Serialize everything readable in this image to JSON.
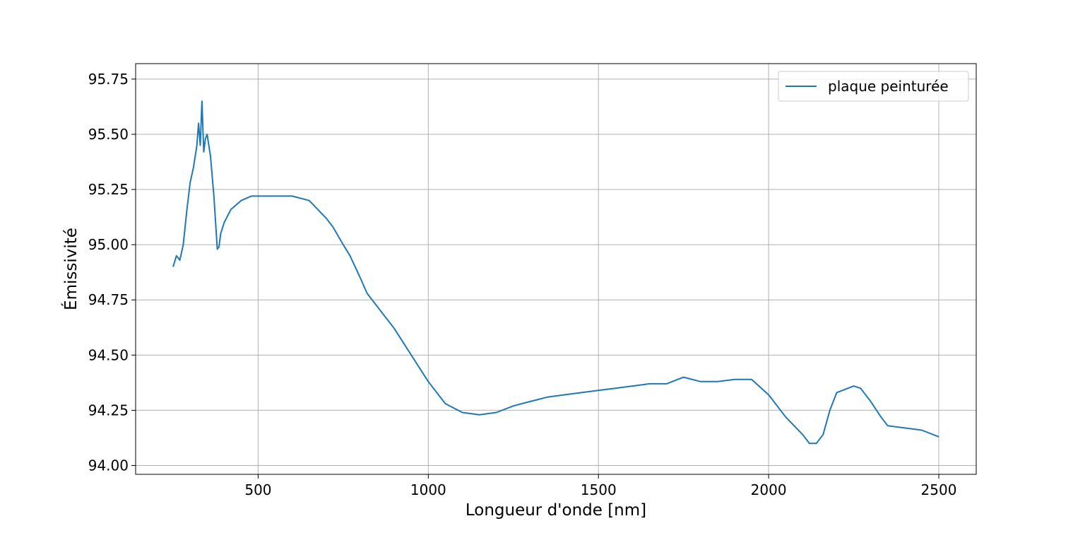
{
  "chart_data": {
    "type": "line",
    "title": "",
    "xlabel": "Longueur d'onde [nm]",
    "ylabel": "Émissivité",
    "xlim": [
      140,
      2610
    ],
    "ylim": [
      93.96,
      95.82
    ],
    "xticks": [
      500,
      1000,
      1500,
      2000,
      2500
    ],
    "yticks": [
      94.0,
      94.25,
      94.5,
      94.75,
      95.0,
      95.25,
      95.5,
      95.75
    ],
    "xtick_labels": [
      "500",
      "1000",
      "1500",
      "2000",
      "2500"
    ],
    "ytick_labels": [
      "94.00",
      "94.25",
      "94.50",
      "94.75",
      "95.00",
      "95.25",
      "95.50",
      "95.75"
    ],
    "grid": true,
    "legend": {
      "position": "top-right"
    },
    "colors": {
      "series": "#1f77b4",
      "grid": "#b0b0b0",
      "axes": "#000000"
    },
    "series": [
      {
        "name": "plaque peinturée",
        "x": [
          250,
          260,
          270,
          280,
          290,
          300,
          310,
          320,
          325,
          330,
          335,
          340,
          345,
          350,
          360,
          370,
          380,
          385,
          390,
          400,
          420,
          450,
          480,
          500,
          550,
          600,
          650,
          700,
          720,
          750,
          770,
          800,
          820,
          850,
          900,
          950,
          1000,
          1050,
          1100,
          1150,
          1200,
          1250,
          1300,
          1350,
          1400,
          1450,
          1500,
          1550,
          1600,
          1650,
          1700,
          1750,
          1800,
          1850,
          1900,
          1950,
          2000,
          2050,
          2100,
          2120,
          2140,
          2160,
          2180,
          2200,
          2250,
          2270,
          2300,
          2330,
          2350,
          2400,
          2450,
          2500
        ],
        "y": [
          94.9,
          94.95,
          94.93,
          95.0,
          95.15,
          95.28,
          95.35,
          95.45,
          95.55,
          95.45,
          95.65,
          95.42,
          95.48,
          95.5,
          95.4,
          95.22,
          94.98,
          94.99,
          95.05,
          95.1,
          95.16,
          95.2,
          95.22,
          95.22,
          95.22,
          95.22,
          95.2,
          95.12,
          95.08,
          95.0,
          94.95,
          94.85,
          94.78,
          94.72,
          94.62,
          94.5,
          94.38,
          94.28,
          94.24,
          94.23,
          94.24,
          94.27,
          94.29,
          94.31,
          94.32,
          94.33,
          94.34,
          94.35,
          94.36,
          94.37,
          94.37,
          94.4,
          94.38,
          94.38,
          94.39,
          94.39,
          94.32,
          94.22,
          94.14,
          94.1,
          94.1,
          94.14,
          94.25,
          94.33,
          94.36,
          94.35,
          94.29,
          94.22,
          94.18,
          94.17,
          94.16,
          94.13
        ]
      }
    ]
  }
}
